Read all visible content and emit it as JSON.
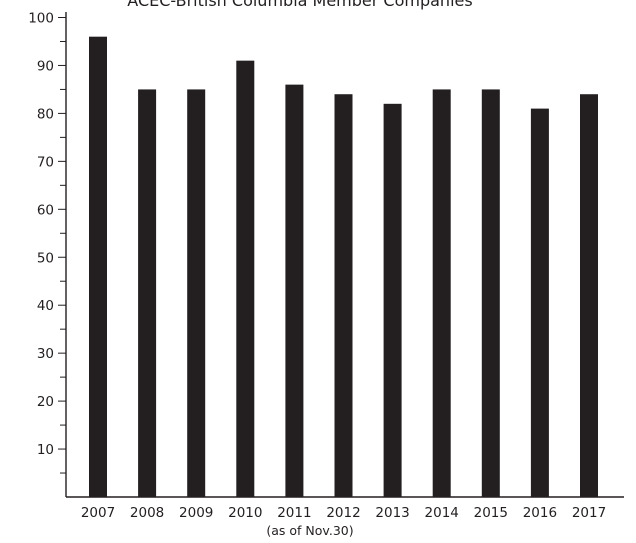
{
  "chart_data": {
    "type": "bar",
    "title": "ACEC-British Columbia Member Companies",
    "categories": [
      "2007",
      "2008",
      "2009",
      "2010",
      "2011",
      "2012",
      "2013",
      "2014",
      "2015",
      "2016",
      "2017"
    ],
    "values": [
      96,
      85,
      85,
      91,
      86,
      84,
      82,
      85,
      85,
      81,
      84
    ],
    "y_ticks": [
      100,
      90,
      80,
      70,
      60,
      50,
      40,
      30,
      20,
      10
    ],
    "ylim": [
      0,
      100
    ],
    "category_note": "(as of Nov.30)",
    "xlabel": "",
    "ylabel": "",
    "grid": false,
    "bar_color": "#231f20"
  }
}
